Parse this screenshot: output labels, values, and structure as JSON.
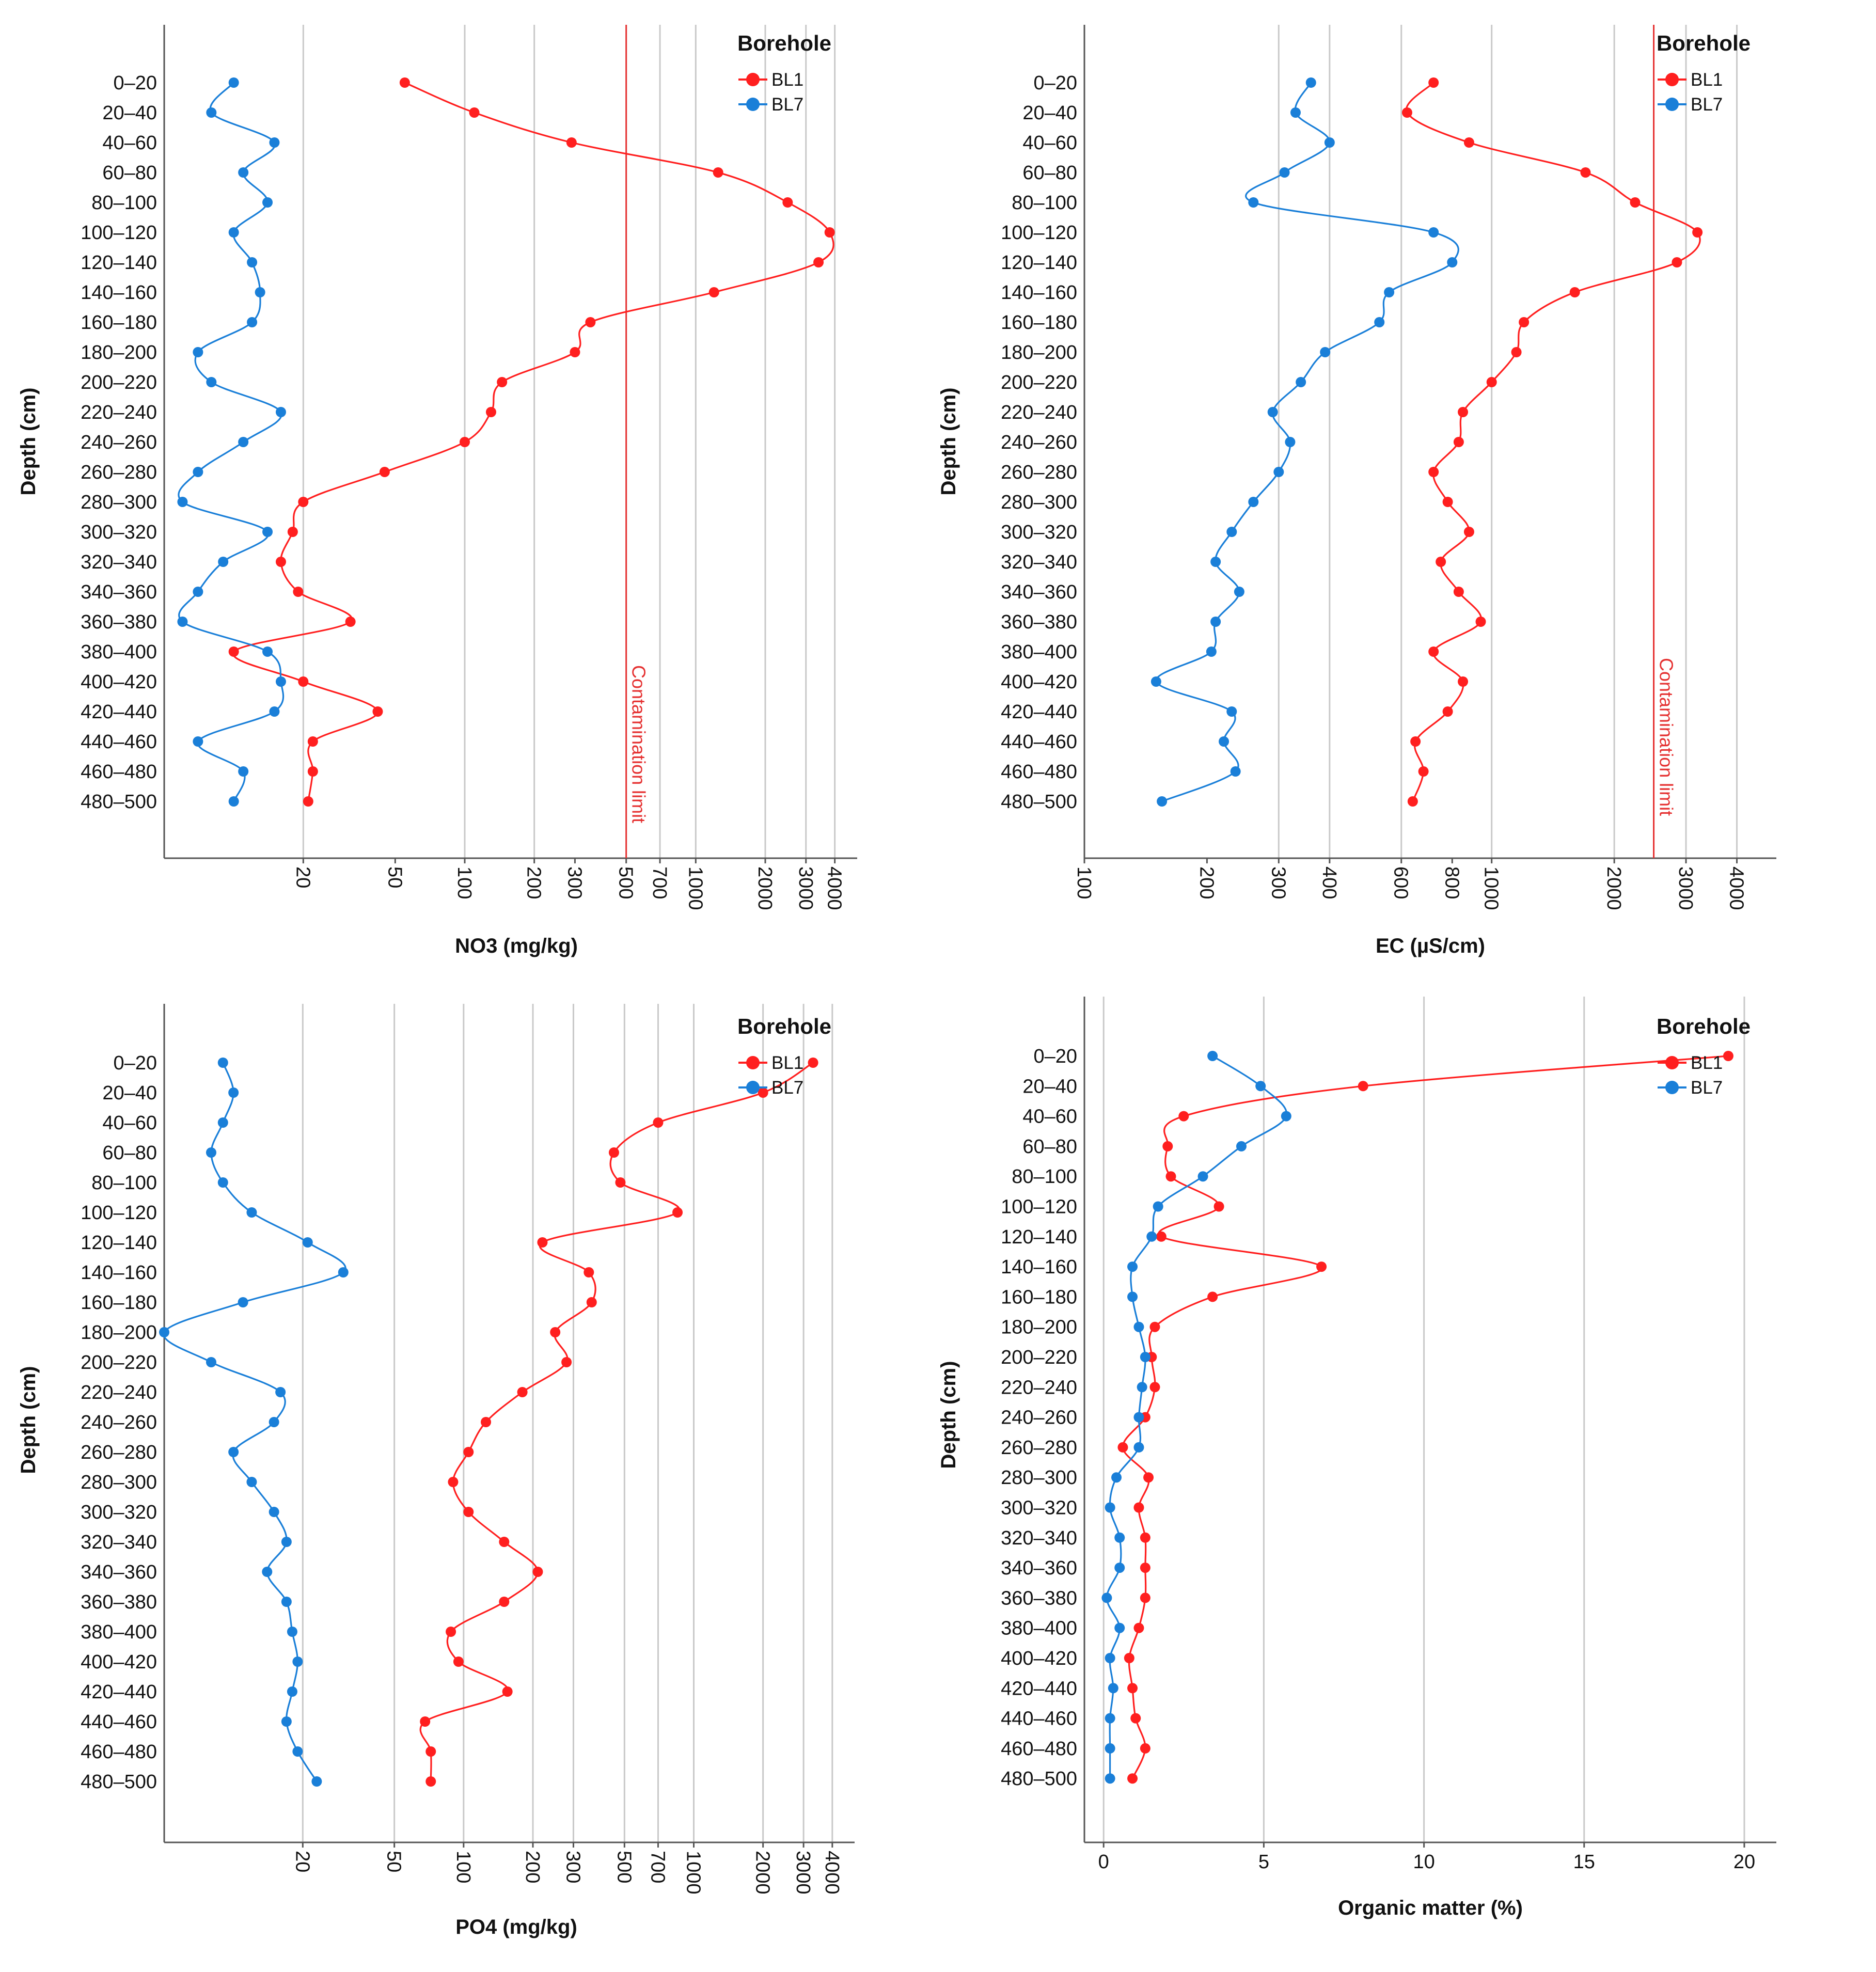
{
  "series_colors": {
    "BL1": "#ff1f1f",
    "BL7": "#1a7fd8"
  },
  "chart_data": [
    {
      "type": "line",
      "title": "",
      "xlabel": "NO3 (mg/kg)",
      "ylabel": "Depth (cm)",
      "xscale": "custom",
      "xlim": [
        5,
        5000
      ],
      "xtick_labels": [
        "20",
        "50",
        "100",
        "200",
        "300",
        "500",
        "700",
        "1000",
        "2000",
        "3000",
        "4000"
      ],
      "xticks": [
        20,
        50,
        100,
        200,
        300,
        500,
        700,
        1000,
        2000,
        3000,
        4000
      ],
      "gridlines": [
        20,
        100,
        200,
        700,
        1000,
        2000,
        3000,
        4000
      ],
      "categories": [
        "0–20",
        "20–40",
        "40–60",
        "60–80",
        "80–100",
        "100–120",
        "120–140",
        "140–160",
        "160–180",
        "180–200",
        "200–220",
        "220–240",
        "240–260",
        "260–280",
        "280–300",
        "300–320",
        "320–340",
        "340–360",
        "360–380",
        "380–400",
        "400–420",
        "420–440",
        "440–460",
        "460–480",
        "480–500"
      ],
      "reference_line": {
        "value": 500,
        "label": "Contamination limit"
      },
      "legend": {
        "title": "Borehole",
        "position": "top-right"
      },
      "series": [
        {
          "name": "BL1",
          "values": [
            55,
            110,
            290,
            1250,
            2500,
            3800,
            3400,
            1200,
            350,
            300,
            145,
            130,
            100,
            45,
            20,
            18,
            16,
            19,
            32,
            10,
            20,
            42,
            22,
            22,
            21
          ]
        },
        {
          "name": "BL7",
          "values": [
            10,
            8,
            15,
            11,
            14,
            10,
            12,
            13,
            12,
            7,
            8,
            16,
            11,
            7,
            6,
            14,
            9,
            7,
            6,
            14,
            16,
            15,
            7,
            11,
            10
          ]
        }
      ]
    },
    {
      "type": "line",
      "title": "",
      "xlabel": "EC (µS/cm)",
      "ylabel": "Depth (cm)",
      "xscale": "custom",
      "xlim": [
        100,
        5000
      ],
      "xtick_labels": [
        "100",
        "200",
        "300",
        "400",
        "600",
        "800",
        "1000",
        "2000",
        "3000",
        "4000"
      ],
      "xticks": [
        100,
        200,
        300,
        400,
        600,
        800,
        1000,
        2000,
        3000,
        4000
      ],
      "gridlines": [
        300,
        400,
        600,
        1000,
        2000,
        3000,
        4000
      ],
      "categories": [
        "0–20",
        "20–40",
        "40–60",
        "60–80",
        "80–100",
        "100–120",
        "120–140",
        "140–160",
        "160–180",
        "180–200",
        "200–220",
        "220–240",
        "240–260",
        "260–280",
        "280–300",
        "300–320",
        "320–340",
        "340–360",
        "360–380",
        "380–400",
        "400–420",
        "420–440",
        "440–460",
        "460–480",
        "480–500"
      ],
      "reference_line": {
        "value": 2500,
        "label": "Contamination limit"
      },
      "legend": {
        "title": "Borehole",
        "position": "top-right"
      },
      "series": [
        {
          "name": "BL1",
          "values": [
            720,
            620,
            880,
            1700,
            2250,
            3200,
            2850,
            1600,
            1200,
            1150,
            1000,
            850,
            830,
            720,
            780,
            880,
            750,
            830,
            940,
            720,
            850,
            780,
            650,
            680,
            640
          ]
        },
        {
          "name": "BL7",
          "values": [
            360,
            330,
            400,
            310,
            260,
            720,
            800,
            560,
            530,
            390,
            340,
            290,
            320,
            300,
            260,
            230,
            210,
            240,
            210,
            205,
            150,
            230,
            220,
            235,
            155
          ]
        }
      ]
    },
    {
      "type": "line",
      "title": "",
      "xlabel": "PO4 (mg/kg)",
      "ylabel": "Depth (cm)",
      "xscale": "custom",
      "xlim": [
        5,
        5000
      ],
      "xtick_labels": [
        "20",
        "50",
        "100",
        "200",
        "300",
        "500",
        "700",
        "1000",
        "2000",
        "3000",
        "4000"
      ],
      "xticks": [
        20,
        50,
        100,
        200,
        300,
        500,
        700,
        1000,
        2000,
        3000,
        4000
      ],
      "gridlines": [
        20,
        50,
        100,
        200,
        300,
        500,
        700,
        1000,
        2000,
        3000,
        4000
      ],
      "categories": [
        "0–20",
        "20–40",
        "40–60",
        "60–80",
        "80–100",
        "100–120",
        "120–140",
        "140–160",
        "160–180",
        "180–200",
        "200–220",
        "220–240",
        "240–260",
        "260–280",
        "280–300",
        "300–320",
        "320–340",
        "340–360",
        "360–380",
        "380–400",
        "400–420",
        "420–440",
        "440–460",
        "460–480",
        "480–500"
      ],
      "legend": {
        "title": "Borehole",
        "position": "top-right"
      },
      "series": [
        {
          "name": "BL1",
          "values": [
            3300,
            2000,
            700,
            450,
            480,
            850,
            220,
            350,
            360,
            250,
            280,
            180,
            125,
            105,
            90,
            105,
            150,
            210,
            150,
            88,
            95,
            155,
            68,
            72,
            72
          ]
        },
        {
          "name": "BL7",
          "values": [
            9,
            10,
            9,
            8,
            9,
            12,
            21,
            30,
            11,
            5,
            8,
            16,
            15,
            10,
            12,
            15,
            17,
            14,
            17,
            18,
            19,
            18,
            17,
            19,
            23
          ]
        }
      ]
    },
    {
      "type": "line",
      "title": "",
      "xlabel": "Organic matter (%)",
      "ylabel": "Depth (cm)",
      "xscale": "linear",
      "xlim": [
        -0.6,
        21
      ],
      "xtick_labels": [
        "0",
        "5",
        "10",
        "15",
        "20"
      ],
      "xticks": [
        0,
        5,
        10,
        15,
        20
      ],
      "gridlines": [
        0,
        5,
        10,
        15,
        20
      ],
      "categories": [
        "0–20",
        "20–40",
        "40–60",
        "60–80",
        "80–100",
        "100–120",
        "120–140",
        "140–160",
        "160–180",
        "180–200",
        "200–220",
        "220–240",
        "240–260",
        "260–280",
        "280–300",
        "300–320",
        "320–340",
        "340–360",
        "360–380",
        "380–400",
        "400–420",
        "420–440",
        "440–460",
        "460–480",
        "480–500"
      ],
      "legend": {
        "title": "Borehole",
        "position": "top-right"
      },
      "series": [
        {
          "name": "BL1",
          "values": [
            19.5,
            8.1,
            2.5,
            2.0,
            2.1,
            3.6,
            1.8,
            6.8,
            3.4,
            1.6,
            1.5,
            1.6,
            1.3,
            0.6,
            1.4,
            1.1,
            1.3,
            1.3,
            1.3,
            1.1,
            0.8,
            0.9,
            1.0,
            1.3,
            0.9
          ]
        },
        {
          "name": "BL7",
          "values": [
            3.4,
            4.9,
            5.7,
            4.3,
            3.1,
            1.7,
            1.5,
            0.9,
            0.9,
            1.1,
            1.3,
            1.2,
            1.1,
            1.1,
            0.4,
            0.2,
            0.5,
            0.5,
            0.1,
            0.5,
            0.2,
            0.3,
            0.2,
            0.2,
            0.2
          ]
        }
      ]
    }
  ]
}
